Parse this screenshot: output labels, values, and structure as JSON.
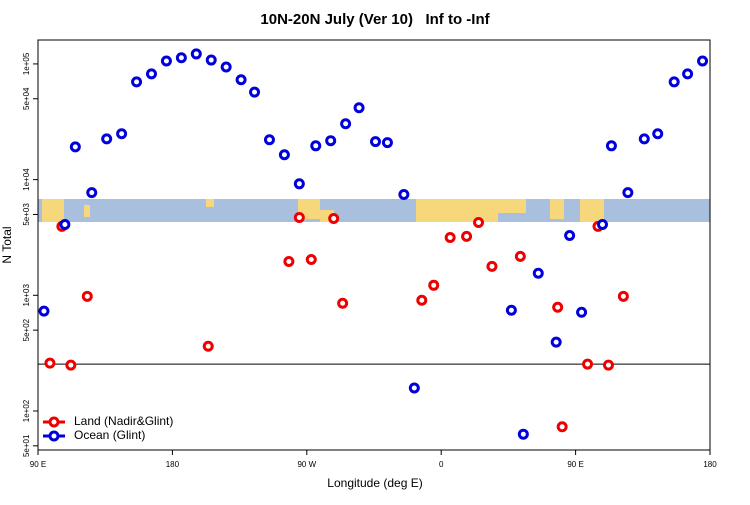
{
  "chart_data": {
    "type": "scatter",
    "title": "10N-20N July (Ver 10)   Inf to -Inf",
    "x_label": "Longitude (deg E)",
    "y_label": "N Total",
    "log_y": true,
    "legend": "bottom-left",
    "reference_line": 254,
    "xlim": [
      90,
      540
    ],
    "xticks": [
      {
        "value": 90,
        "label": "90 E"
      },
      180,
      {
        "value": 270,
        "label": "90 W"
      },
      {
        "value": 360,
        "label": "0"
      },
      {
        "value": 450,
        "label": "90 E"
      },
      {
        "value": 540,
        "label": "180"
      }
    ],
    "ylim": [
      46,
      161000
    ],
    "yticks": [
      {
        "value": 50,
        "label": "5e+01"
      },
      {
        "value": 100,
        "label": "1e+02"
      },
      {
        "value": 500,
        "label": "5e+02"
      },
      {
        "value": 1000,
        "label": "1e+03"
      },
      {
        "value": 5000,
        "label": "5e+03"
      },
      {
        "value": 10000,
        "label": "1e+04"
      },
      {
        "value": 50000,
        "label": "5e+04"
      },
      {
        "value": 100000,
        "label": "1e+05"
      }
    ],
    "series": [
      {
        "name": "Land (Nadir&Glint)",
        "color": "#ee0000",
        "x": [
          98,
          106,
          112,
          123,
          204,
          258,
          265,
          273,
          288,
          294,
          347,
          355,
          366,
          377,
          385,
          394,
          413,
          438,
          441,
          458,
          465,
          472,
          482
        ],
        "values": [
          259,
          3940,
          249,
          980,
          363,
          1960,
          4700,
          2040,
          4610,
          853,
          906,
          1220,
          3160,
          3230,
          4260,
          1780,
          2170,
          789,
          73,
          254,
          3940,
          249,
          980
        ]
      },
      {
        "name": "Ocean (Glint)",
        "color": "#0000dd",
        "x": [
          94,
          108,
          115,
          126,
          136,
          146,
          156,
          166,
          176,
          186,
          196,
          206,
          216,
          226,
          235,
          245,
          255,
          265,
          276,
          286,
          296,
          305,
          316,
          324,
          335,
          342,
          407,
          415,
          425,
          437,
          446,
          454,
          468,
          474,
          485,
          496,
          505,
          516,
          525,
          535
        ],
        "values": [
          730,
          4090,
          19200,
          7720,
          22500,
          24900,
          70000,
          82000,
          106000,
          113000,
          122000,
          108000,
          94000,
          73000,
          57000,
          22100,
          16400,
          9200,
          19600,
          21700,
          30400,
          41800,
          21300,
          20900,
          7430,
          158,
          743,
          63,
          1550,
          394,
          3290,
          713,
          4090,
          19600,
          7720,
          22500,
          24900,
          70000,
          82000,
          106000
        ]
      }
    ]
  }
}
